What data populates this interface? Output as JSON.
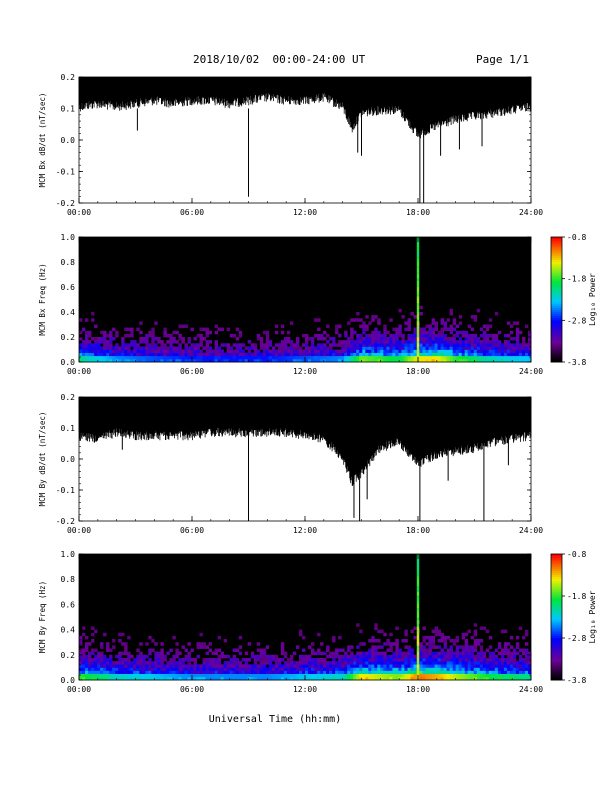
{
  "header": {
    "date_range": "2018/10/02  00:00-24:00 UT",
    "page": "Page 1/1"
  },
  "xlabel": "Universal Time (hh:mm)",
  "colors": {
    "trace": "#000000",
    "background": "#ffffff"
  },
  "chart_data": [
    {
      "type": "line",
      "ylabel": "MCM Bx dB/dt (nT/sec)",
      "xlim": [
        0,
        24
      ],
      "ylim": [
        -0.2,
        0.2
      ],
      "x_ticks": [
        "00:00",
        "06:00",
        "12:00",
        "18:00",
        "24:00"
      ],
      "y_ticks": [
        "0.2",
        "0.1",
        "0.0",
        "-0.1",
        "-0.2"
      ],
      "series": [
        {
          "x_hours": [
            0.0,
            1.0,
            2.0,
            3.0,
            4.0,
            5.0,
            6.0,
            7.0,
            8.0,
            9.0,
            10.0,
            11.0,
            12.0,
            13.0,
            14.0,
            14.5,
            15.0,
            16.0,
            17.0,
            18.0,
            19.0,
            20.0,
            21.0,
            22.0,
            23.0,
            24.0
          ],
          "band_top": [
            0.2,
            0.2,
            0.2,
            0.2,
            0.2,
            0.2,
            0.2,
            0.2,
            0.2,
            0.2,
            0.2,
            0.2,
            0.2,
            0.2,
            0.2,
            0.2,
            0.2,
            0.2,
            0.2,
            0.2,
            0.2,
            0.2,
            0.2,
            0.2,
            0.2,
            0.2
          ],
          "band_bottom": [
            0.12,
            0.13,
            0.12,
            0.13,
            0.14,
            0.13,
            0.14,
            0.14,
            0.13,
            0.14,
            0.15,
            0.14,
            0.14,
            0.15,
            0.12,
            0.05,
            0.1,
            0.11,
            0.11,
            0.03,
            0.06,
            0.08,
            0.09,
            0.1,
            0.11,
            0.12
          ],
          "spikes": [
            [
              3.1,
              0.03
            ],
            [
              9.0,
              -0.18
            ],
            [
              14.8,
              -0.04
            ],
            [
              15.0,
              -0.05
            ],
            [
              18.1,
              -0.2
            ],
            [
              18.3,
              -0.2
            ],
            [
              19.2,
              -0.05
            ],
            [
              20.2,
              -0.03
            ],
            [
              21.4,
              -0.02
            ]
          ]
        }
      ]
    },
    {
      "type": "heatmap",
      "ylabel": "MCM Bx Freq (Hz)",
      "xlim": [
        0,
        24
      ],
      "ylim": [
        0.0,
        1.0
      ],
      "x_ticks": [
        "00:00",
        "06:00",
        "12:00",
        "18:00",
        "24:00"
      ],
      "y_ticks": [
        "1.0",
        "0.8",
        "0.6",
        "0.4",
        "0.2",
        "0.0"
      ],
      "colorbar": {
        "label": "Log₁₀ Power",
        "ticks": [
          "-0.8",
          "-1.8",
          "-2.8",
          "-3.8"
        ],
        "range": [
          -3.8,
          -0.8
        ]
      },
      "activity_hours": [
        0.0,
        2.0,
        4.0,
        6.0,
        8.0,
        10.0,
        12.0,
        14.0,
        15.0,
        16.0,
        17.0,
        18.0,
        19.0,
        20.0,
        22.0,
        24.0
      ],
      "activity_level": [
        0.6,
        0.45,
        0.4,
        0.35,
        0.35,
        0.35,
        0.4,
        0.45,
        0.75,
        0.7,
        0.65,
        0.85,
        0.85,
        0.7,
        0.55,
        0.5
      ],
      "bright_line_hour": 18.0
    },
    {
      "type": "line",
      "ylabel": "MCM By dB/dt (nT/sec)",
      "xlim": [
        0,
        24
      ],
      "ylim": [
        -0.2,
        0.2
      ],
      "x_ticks": [
        "00:00",
        "06:00",
        "12:00",
        "18:00",
        "24:00"
      ],
      "y_ticks": [
        "0.2",
        "0.1",
        "0.0",
        "-0.1",
        "-0.2"
      ],
      "series": [
        {
          "x_hours": [
            0.0,
            1.0,
            2.0,
            3.0,
            4.0,
            5.0,
            6.0,
            7.0,
            8.0,
            9.0,
            10.0,
            11.0,
            12.0,
            13.0,
            14.0,
            14.5,
            15.0,
            16.0,
            17.0,
            18.0,
            19.0,
            20.0,
            21.0,
            22.0,
            23.0,
            24.0
          ],
          "band_top": [
            0.2,
            0.2,
            0.2,
            0.2,
            0.2,
            0.2,
            0.2,
            0.2,
            0.2,
            0.2,
            0.2,
            0.2,
            0.2,
            0.2,
            0.2,
            0.2,
            0.2,
            0.2,
            0.2,
            0.2,
            0.2,
            0.2,
            0.2,
            0.2,
            0.2,
            0.2
          ],
          "band_bottom": [
            0.09,
            0.08,
            0.1,
            0.09,
            0.09,
            0.09,
            0.09,
            0.1,
            0.1,
            0.1,
            0.1,
            0.1,
            0.09,
            0.08,
            0.02,
            -0.06,
            -0.03,
            0.05,
            0.07,
            0.0,
            0.03,
            0.04,
            0.05,
            0.07,
            0.08,
            0.09
          ],
          "spikes": [
            [
              2.3,
              0.03
            ],
            [
              9.0,
              -0.2
            ],
            [
              14.6,
              -0.19
            ],
            [
              14.9,
              -0.2
            ],
            [
              15.3,
              -0.13
            ],
            [
              18.1,
              -0.2
            ],
            [
              19.6,
              -0.07
            ],
            [
              21.5,
              -0.2
            ],
            [
              22.8,
              -0.02
            ]
          ]
        }
      ]
    },
    {
      "type": "heatmap",
      "ylabel": "MCM By Freq (Hz)",
      "xlim": [
        0,
        24
      ],
      "ylim": [
        0.0,
        1.0
      ],
      "x_ticks": [
        "00:00",
        "06:00",
        "12:00",
        "18:00",
        "24:00"
      ],
      "y_ticks": [
        "1.0",
        "0.8",
        "0.6",
        "0.4",
        "0.2",
        "0.0"
      ],
      "colorbar": {
        "label": "Log₁₀ Power",
        "ticks": [
          "-0.8",
          "-1.8",
          "-2.8",
          "-3.8"
        ],
        "range": [
          -3.8,
          -0.8
        ]
      },
      "activity_hours": [
        0.0,
        2.0,
        4.0,
        6.0,
        8.0,
        10.0,
        12.0,
        14.0,
        15.0,
        16.0,
        17.0,
        18.0,
        19.0,
        20.0,
        22.0,
        24.0
      ],
      "activity_level": [
        0.7,
        0.55,
        0.5,
        0.45,
        0.45,
        0.45,
        0.5,
        0.55,
        0.85,
        0.8,
        0.75,
        0.95,
        0.9,
        0.8,
        0.65,
        0.6
      ],
      "bright_line_hour": 18.0
    }
  ]
}
